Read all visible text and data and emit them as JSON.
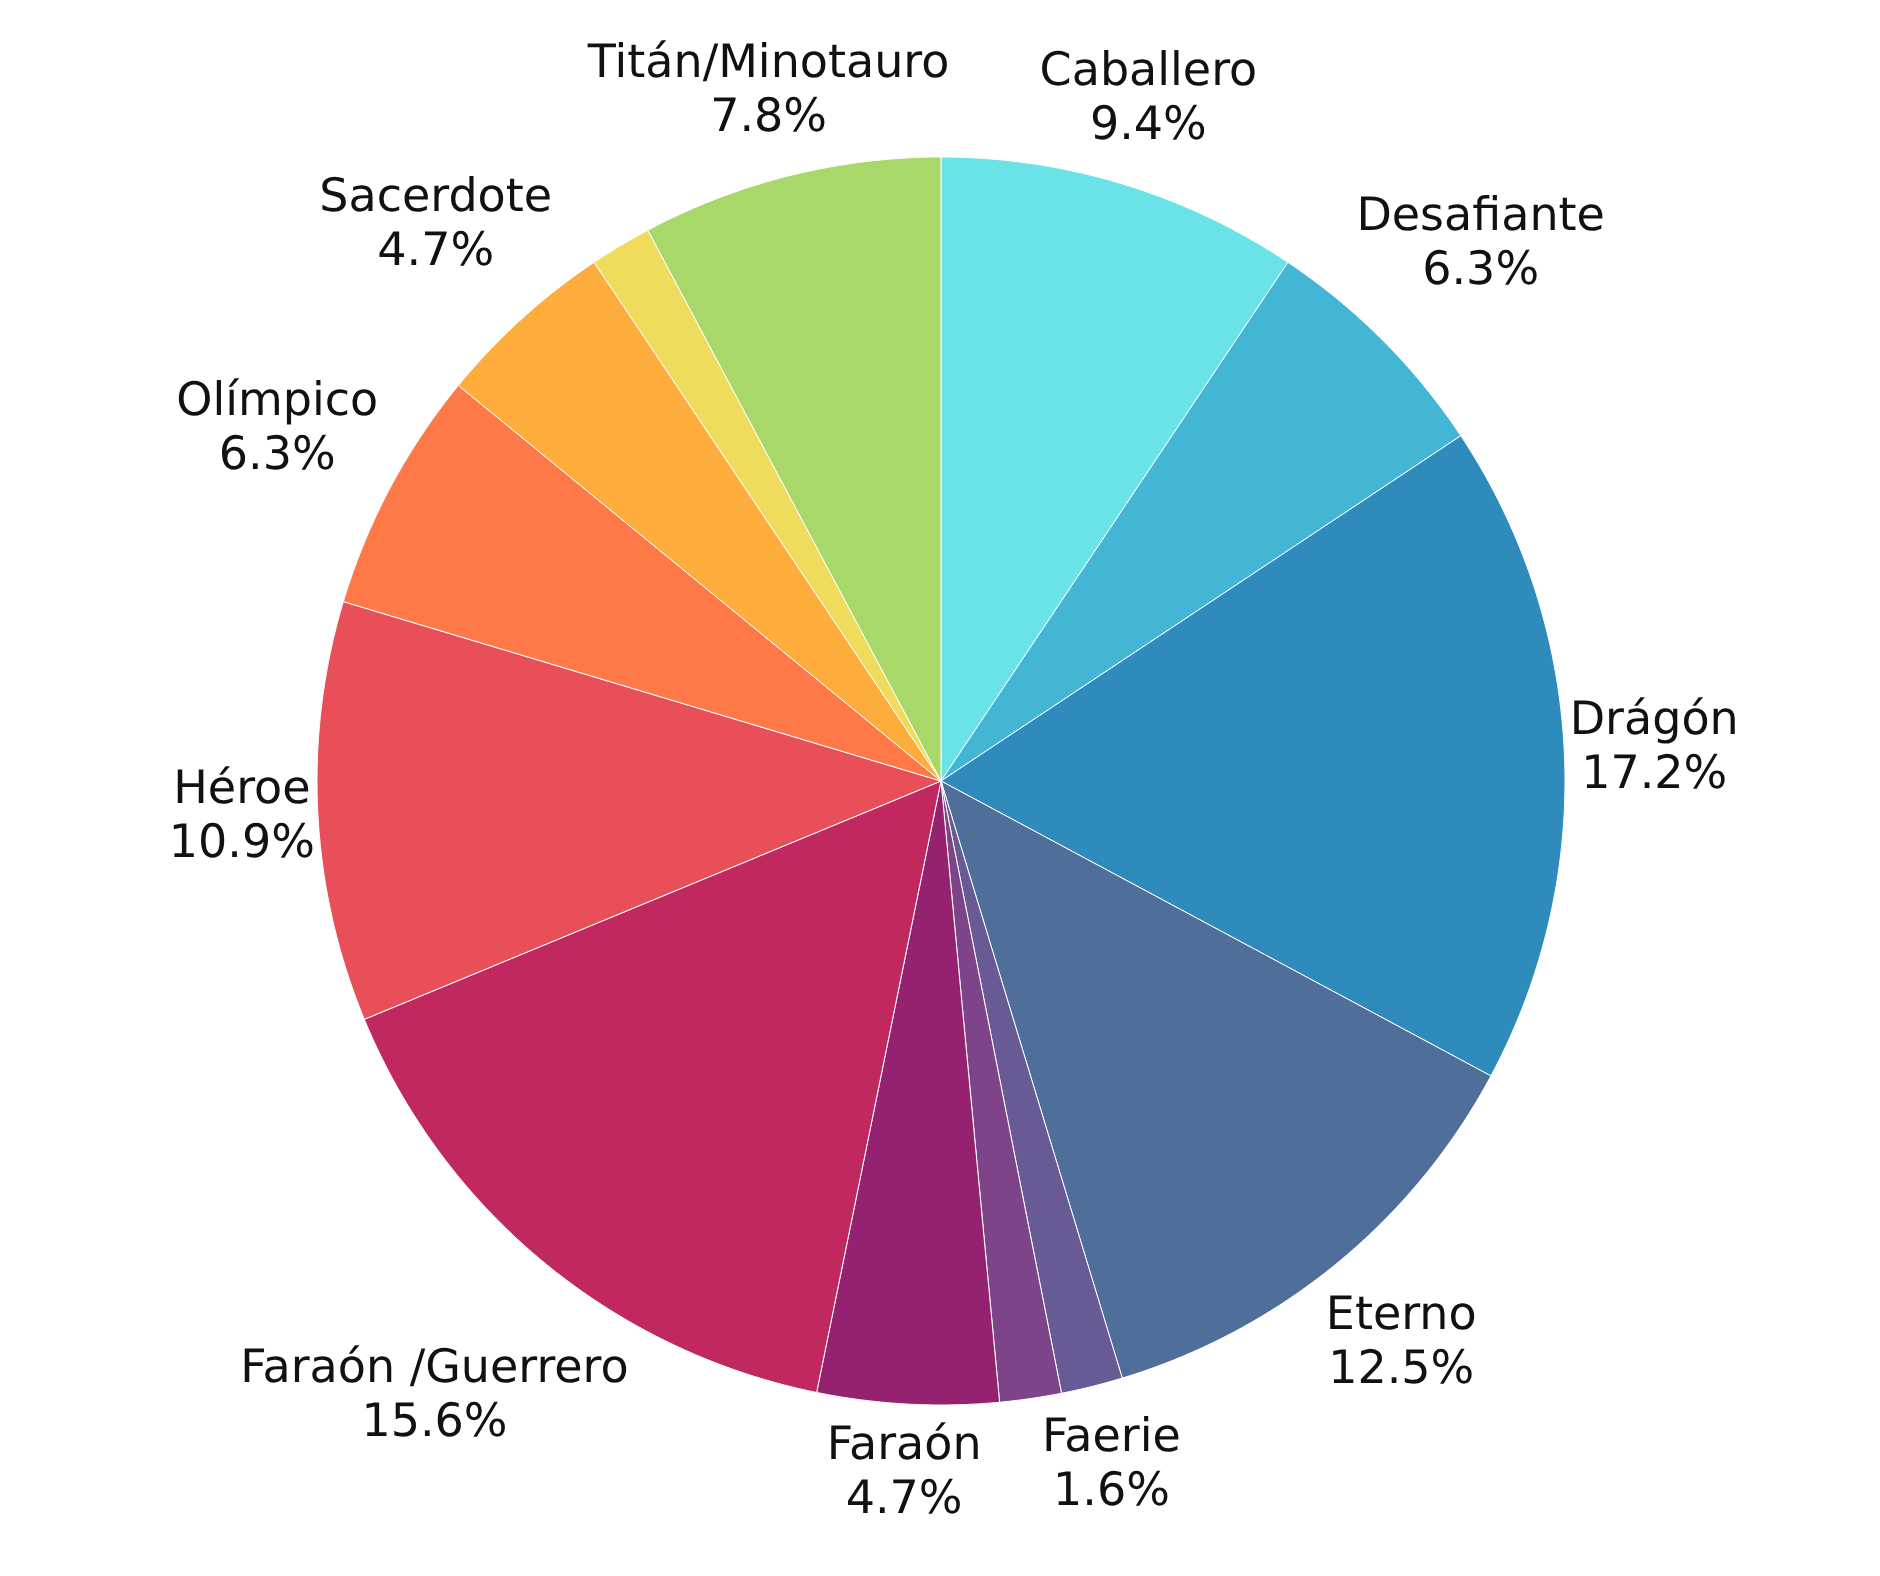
{
  "chart_data": {
    "type": "pie",
    "categories": [
      "Caballero",
      "Desafiante",
      "Drágón",
      "Eterno",
      "Faerie",
      null,
      "Faraón",
      "Faraón /Guerrero",
      "Héroe",
      "Olímpico",
      "Sacerdote",
      null,
      "Titán/Minotauro"
    ],
    "values": [
      9.4,
      6.3,
      17.2,
      12.5,
      1.6,
      1.6,
      4.7,
      15.6,
      10.9,
      6.3,
      4.7,
      1.6,
      7.8
    ],
    "value_labels": [
      "9.4%",
      "6.3%",
      "17.2%",
      "12.5%",
      "1.6%",
      null,
      "4.7%",
      "15.6%",
      "10.9%",
      "6.3%",
      "4.7%",
      null,
      "7.8%"
    ],
    "colors": [
      "#6ae3e8",
      "#43b6d6",
      "#2e8bbb",
      "#4f6e9a",
      "#675a95",
      "#7e4489",
      "#952270",
      "#c0285f",
      "#e84f59",
      "#fe7848",
      "#feac3c",
      "#f0dc5c",
      "#a8d86a"
    ]
  }
}
